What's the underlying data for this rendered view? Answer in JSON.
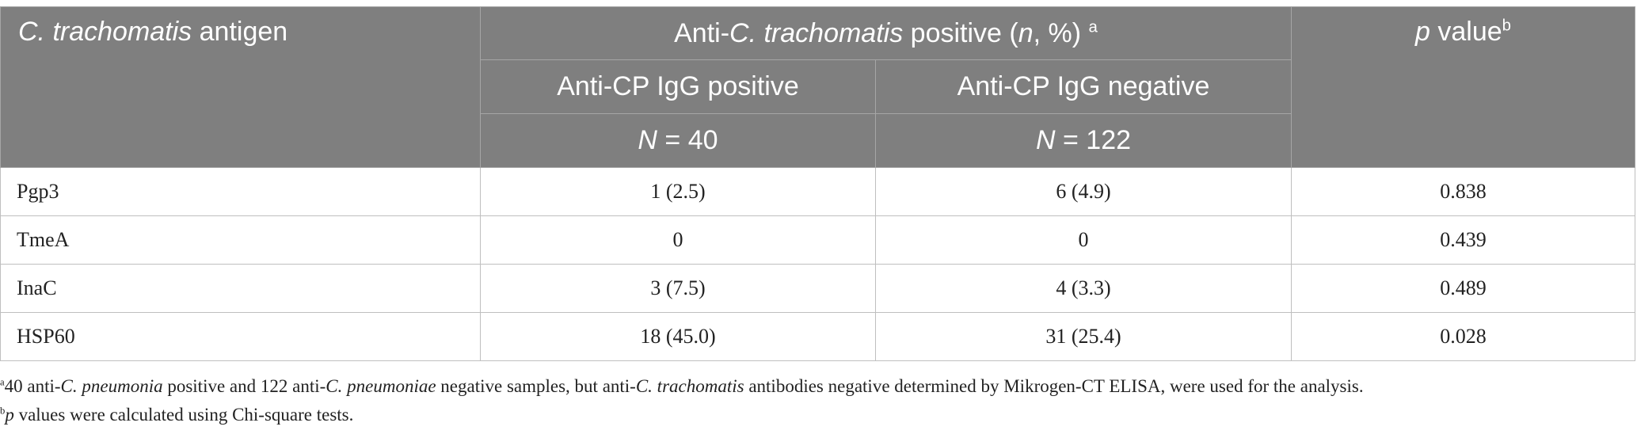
{
  "header": {
    "col1": {
      "italic": "C. trachomatis",
      "rest": " antigen"
    },
    "col2_group": {
      "pre": "Anti-",
      "italic1": "C. trachomatis",
      "mid": " positive (",
      "italic2": "n",
      "post": ", %) ",
      "sup": "a"
    },
    "col4": {
      "italic": "p",
      "rest": " value",
      "sup": "b"
    },
    "subcol_positive": "Anti-CP IgG positive",
    "subcol_negative": "Anti-CP IgG negative",
    "n_label": "N",
    "n_positive": " = 40",
    "n_negative": " = 122"
  },
  "rows": [
    {
      "antigen": "Pgp3",
      "positive": "1 (2.5)",
      "negative": "6 (4.9)",
      "p": "0.838"
    },
    {
      "antigen": "TmeA",
      "positive": "0",
      "negative": "0",
      "p": "0.439"
    },
    {
      "antigen": "InaC",
      "positive": "3 (7.5)",
      "negative": "4 (3.3)",
      "p": "0.489"
    },
    {
      "antigen": "HSP60",
      "positive": "18 (45.0)",
      "negative": "31 (25.4)",
      "p": "0.028"
    }
  ],
  "footnotes": {
    "a": {
      "mark": "a",
      "t1": "40 anti-",
      "i1": "C. pneumonia",
      "t2": " positive and 122 anti-",
      "i2": "C. pneumoniae",
      "t3": " negative samples, but anti-",
      "i3": "C. trachomatis",
      "t4": " antibodies negative determined by Mikrogen-CT ELISA, were used for the analysis."
    },
    "b": {
      "mark": "b",
      "i1": "p",
      "t1": " values were calculated using Chi-square tests."
    }
  }
}
